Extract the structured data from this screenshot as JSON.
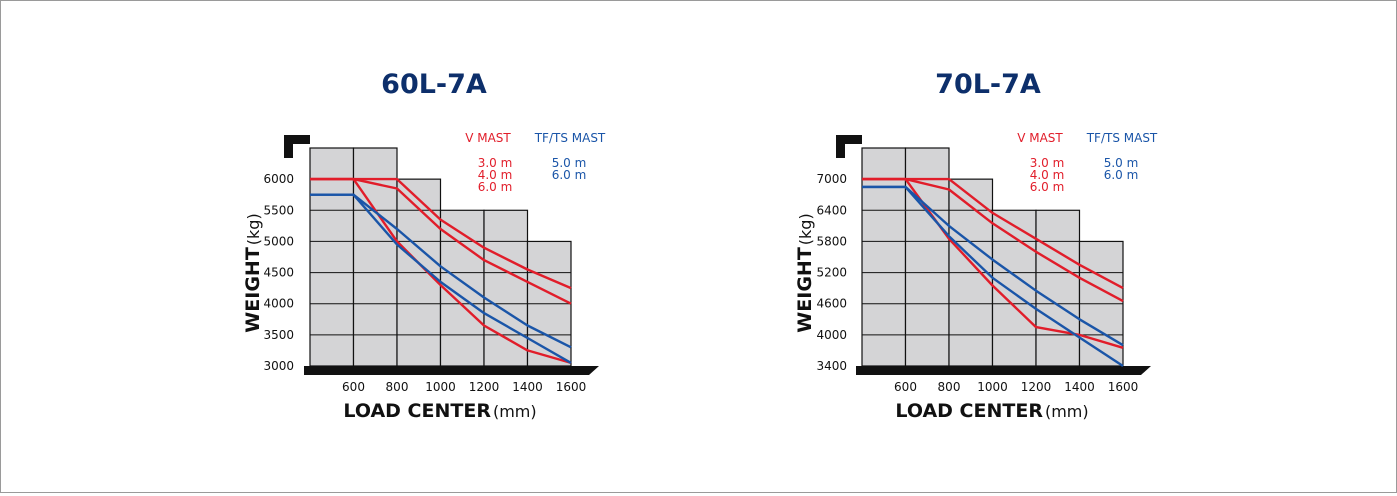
{
  "chart_data": [
    {
      "type": "line",
      "title": "60L-7A",
      "xlabel": "LOAD CENTER",
      "xunit": "(mm)",
      "ylabel": "WEIGHT",
      "yunit": "(kg)",
      "x_ticks": [
        "600",
        "800",
        "1000",
        "1200",
        "1400",
        "1600"
      ],
      "y_ticks": [
        "6000",
        "5500",
        "5000",
        "4500",
        "4000",
        "3500",
        "3000"
      ],
      "xlim": [
        400,
        1600
      ],
      "ylim": [
        3000,
        6500
      ],
      "legend": {
        "v_mast_label": "V MAST",
        "v_mast_items": [
          "3.0 m",
          "4.0 m",
          "6.0 m"
        ],
        "tf_mast_label": "TF/TS MAST",
        "tf_mast_items": [
          "5.0 m",
          "6.0 m"
        ]
      },
      "colors": {
        "v_mast": "#e11d2a",
        "tf_mast": "#1a55a8",
        "grid_fill": "#d4d4d6"
      },
      "grid_steps": [
        {
          "x0": 400,
          "x1": 600,
          "top": 6500
        },
        {
          "x0": 600,
          "x1": 800,
          "top": 6500
        },
        {
          "x0": 800,
          "x1": 1000,
          "top": 6000
        },
        {
          "x0": 1000,
          "x1": 1200,
          "top": 5500
        },
        {
          "x0": 1200,
          "x1": 1400,
          "top": 5500
        },
        {
          "x0": 1400,
          "x1": 1600,
          "top": 5000
        }
      ],
      "series": [
        {
          "group": "v_mast",
          "x": [
            400,
            600,
            800,
            1000,
            1200,
            1400,
            1600
          ],
          "y": [
            6000,
            6000,
            6000,
            5350,
            4900,
            4550,
            4250
          ]
        },
        {
          "group": "v_mast",
          "x": [
            400,
            600,
            800,
            1000,
            1200,
            1400,
            1600
          ],
          "y": [
            6000,
            6000,
            5850,
            5200,
            4700,
            4350,
            4000
          ]
        },
        {
          "group": "v_mast",
          "x": [
            400,
            600,
            800,
            1000,
            1200,
            1400,
            1600
          ],
          "y": [
            6000,
            6000,
            5000,
            4300,
            3650,
            3250,
            3050
          ]
        },
        {
          "group": "tf_mast",
          "x": [
            400,
            600,
            800,
            1000,
            1200,
            1400,
            1600
          ],
          "y": [
            5750,
            5750,
            5200,
            4600,
            4100,
            3650,
            3300
          ]
        },
        {
          "group": "tf_mast",
          "x": [
            400,
            600,
            800,
            1000,
            1200,
            1400,
            1600
          ],
          "y": [
            5750,
            5750,
            4950,
            4350,
            3850,
            3450,
            3050
          ]
        }
      ]
    },
    {
      "type": "line",
      "title": "70L-7A",
      "xlabel": "LOAD CENTER",
      "xunit": "(mm)",
      "ylabel": "WEIGHT",
      "yunit": "(kg)",
      "x_ticks": [
        "600",
        "800",
        "1000",
        "1200",
        "1400",
        "1600"
      ],
      "y_ticks": [
        "7000",
        "6400",
        "5800",
        "5200",
        "4600",
        "4000",
        "3400"
      ],
      "xlim": [
        400,
        1600
      ],
      "ylim": [
        3400,
        7600
      ],
      "legend": {
        "v_mast_label": "V MAST",
        "v_mast_items": [
          "3.0 m",
          "4.0 m",
          "6.0 m"
        ],
        "tf_mast_label": "TF/TS MAST",
        "tf_mast_items": [
          "5.0 m",
          "6.0 m"
        ]
      },
      "colors": {
        "v_mast": "#e11d2a",
        "tf_mast": "#1a55a8",
        "grid_fill": "#d4d4d6"
      },
      "grid_steps": [
        {
          "x0": 400,
          "x1": 600,
          "top": 7600
        },
        {
          "x0": 600,
          "x1": 800,
          "top": 7600
        },
        {
          "x0": 800,
          "x1": 1000,
          "top": 7000
        },
        {
          "x0": 1000,
          "x1": 1200,
          "top": 6400
        },
        {
          "x0": 1200,
          "x1": 1400,
          "top": 6400
        },
        {
          "x0": 1400,
          "x1": 1600,
          "top": 5800
        }
      ],
      "series": [
        {
          "group": "v_mast",
          "x": [
            400,
            600,
            800,
            1000,
            1200,
            1400,
            1600
          ],
          "y": [
            7000,
            7000,
            7000,
            6350,
            5850,
            5350,
            4900
          ]
        },
        {
          "group": "v_mast",
          "x": [
            400,
            600,
            800,
            1000,
            1200,
            1400,
            1600
          ],
          "y": [
            7000,
            7000,
            6800,
            6150,
            5600,
            5100,
            4650
          ]
        },
        {
          "group": "v_mast",
          "x": [
            400,
            600,
            800,
            1000,
            1200,
            1400,
            1600
          ],
          "y": [
            7000,
            7000,
            5850,
            4950,
            4150,
            4000,
            3750
          ]
        },
        {
          "group": "tf_mast",
          "x": [
            400,
            600,
            800,
            1000,
            1200,
            1400,
            1600
          ],
          "y": [
            6850,
            6850,
            6100,
            5450,
            4850,
            4300,
            3800
          ]
        },
        {
          "group": "tf_mast",
          "x": [
            400,
            600,
            800,
            1000,
            1200,
            1400,
            1600
          ],
          "y": [
            6850,
            6850,
            5900,
            5100,
            4500,
            3950,
            3400
          ]
        }
      ]
    }
  ]
}
